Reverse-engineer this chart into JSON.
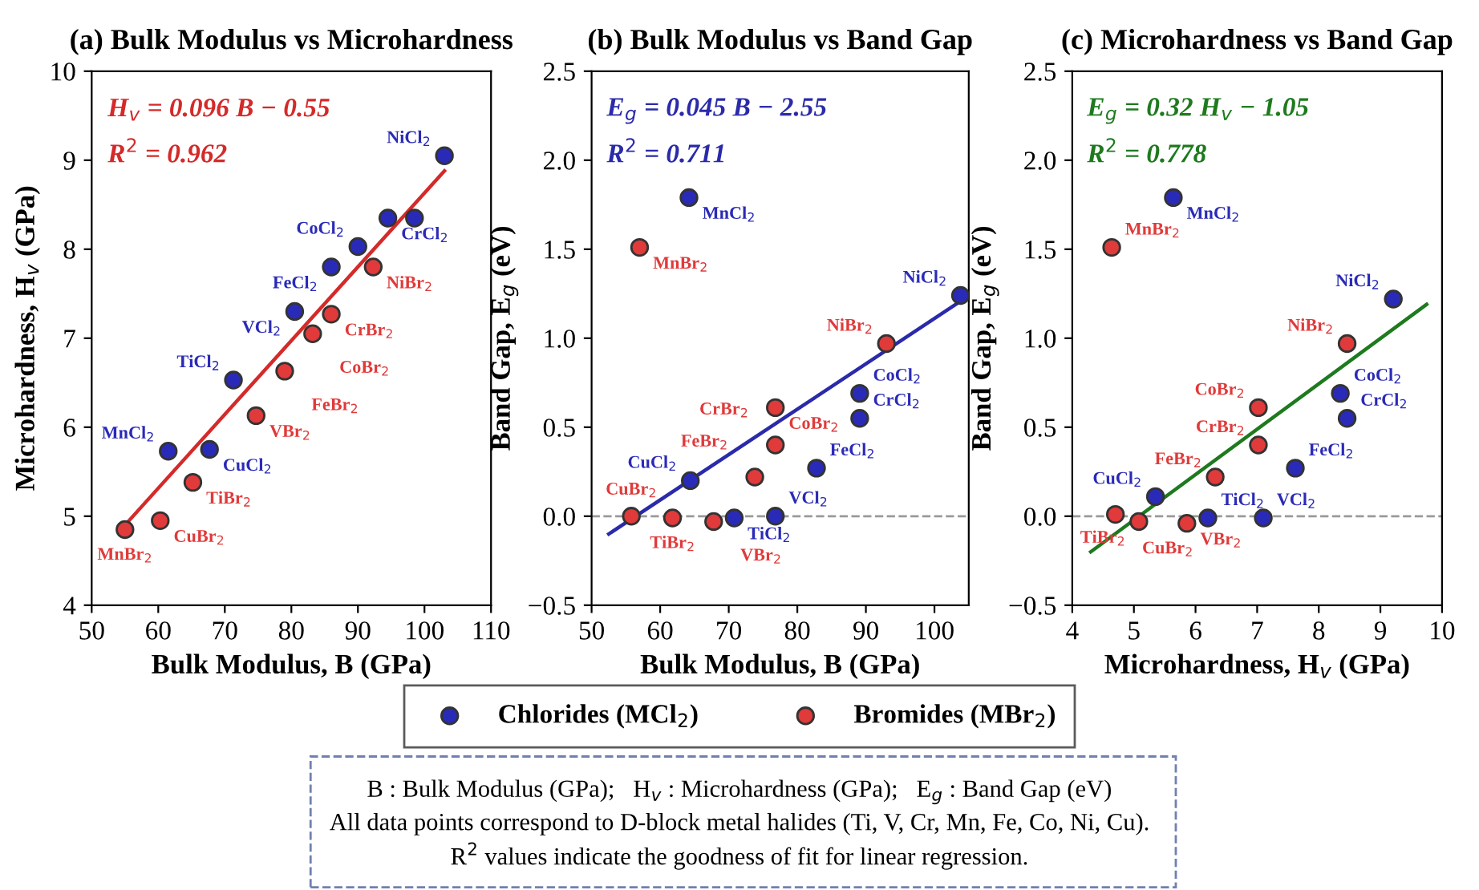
{
  "chart_data": [
    {
      "type": "scatter",
      "title": "(a) Bulk Modulus vs Microhardness",
      "xlabel": "Bulk Modulus, B (GPa)",
      "ylabel": "Microhardness, H$_{v}$ (GPa)",
      "xlim": [
        50,
        110
      ],
      "xticks": [
        50,
        60,
        70,
        80,
        90,
        100,
        110
      ],
      "ylim": [
        4,
        10
      ],
      "yticks": [
        4,
        5,
        6,
        7,
        8,
        9,
        10
      ],
      "grid": false,
      "marker": "circle",
      "series": [
        {
          "color": "#2a2ab8",
          "x": [
            103,
            94.5,
            98.5,
            90,
            86,
            80.5,
            71.3,
            61.5,
            67.7
          ],
          "values": [
            9.05,
            8.35,
            8.35,
            8.03,
            7.8,
            7.3,
            6.53,
            5.73,
            5.75
          ]
        },
        {
          "color": "#e03a3a",
          "x": [
            92.3,
            86,
            83.2,
            79,
            74.7,
            65.2,
            60.3,
            55
          ],
          "values": [
            7.8,
            7.27,
            7.05,
            6.63,
            6.13,
            5.38,
            4.95,
            4.85
          ]
        },
        {
          "type": "line",
          "marker": "none",
          "color": "#d42a2a",
          "x": [
            55,
            103
          ],
          "values": [
            4.9,
            8.88
          ]
        }
      ],
      "annotations": [
        "H$_{v}$ = 0.096 B − 0.55",
        "R$^{2}$ = 0.962",
        {
          "text": "NiCl$_{2}$",
          "x": 103,
          "y": 9.05
        },
        {
          "text": "CrCl$_{2}$",
          "x": 94.5,
          "y": 8.35
        },
        {
          "text": "CoCl$_{2}$",
          "x": 90,
          "y": 8.03
        },
        {
          "text": "FeCl$_{2}$",
          "x": 86,
          "y": 7.8
        },
        {
          "text": "VCl$_{2}$",
          "x": 80.5,
          "y": 7.3
        },
        {
          "text": "TiCl$_{2}$",
          "x": 71.3,
          "y": 6.53
        },
        {
          "text": "MnCl$_{2}$",
          "x": 61.5,
          "y": 5.73
        },
        {
          "text": "CuCl$_{2}$",
          "x": 67.7,
          "y": 5.75
        },
        {
          "text": "NiBr$_{2}$",
          "x": 92.3,
          "y": 7.8
        },
        {
          "text": "CrBr$_{2}$",
          "x": 86,
          "y": 7.27
        },
        {
          "text": "CoBr$_{2}$",
          "x": 83.2,
          "y": 7.05
        },
        {
          "text": "FeBr$_{2}$",
          "x": 79,
          "y": 6.63
        },
        {
          "text": "VBr$_{2}$",
          "x": 74.7,
          "y": 6.13
        },
        {
          "text": "TiBr$_{2}$",
          "x": 65.2,
          "y": 5.38
        },
        {
          "text": "CuBr$_{2}$",
          "x": 60.3,
          "y": 4.95
        },
        {
          "text": "MnBr$_{2}$",
          "x": 55,
          "y": 4.85
        }
      ]
    },
    {
      "type": "scatter",
      "title": "(b) Bulk Modulus vs Band Gap",
      "xlabel": "Bulk Modulus, B (GPa)",
      "ylabel": "Band Gap, E$_{g}$ (eV)",
      "xlim": [
        50,
        105
      ],
      "xticks": [
        50,
        60,
        70,
        80,
        90,
        100
      ],
      "ylim": [
        -0.5,
        2.5
      ],
      "yticks": [
        {
          "value": -0.5,
          "label": "−0.5"
        },
        {
          "value": 0,
          "label": "0.0"
        },
        {
          "value": 0.5,
          "label": "0.5"
        },
        {
          "value": 1,
          "label": "1.0"
        },
        {
          "value": 1.5,
          "label": "1.5"
        },
        {
          "value": 2,
          "label": "2.0"
        },
        {
          "value": 2.5,
          "label": "2.5"
        }
      ],
      "grid": false,
      "marker": "circle",
      "legend": "bottom",
      "ref_lines": [
        {
          "axis": "y",
          "value": 0,
          "color": "#999999",
          "line_style": "dashed"
        }
      ],
      "series": [
        {
          "name": "Chlorides (MCl$_{2}$)",
          "color": "#2a2ab8",
          "x": [
            64.2,
            103.8,
            89.1,
            89.1,
            82.8,
            64.4,
            70.8,
            76.8
          ],
          "values": [
            1.79,
            1.24,
            0.69,
            0.55,
            0.27,
            0.2,
            -0.01,
            0
          ]
        },
        {
          "name": "Bromides (MBr$_{2}$)",
          "color": "#e03a3a",
          "x": [
            57,
            93,
            76.8,
            76.8,
            73.8,
            55.8,
            61.8,
            67.8
          ],
          "values": [
            1.51,
            0.97,
            0.61,
            0.4,
            0.22,
            0,
            -0.01,
            -0.03
          ]
        },
        {
          "type": "line",
          "marker": "none",
          "color": "#2a2aaa",
          "x": [
            52.5,
            103.5
          ],
          "values": [
            -0.1,
            1.2
          ]
        }
      ],
      "annotations": [
        "E$_{g}$ = 0.045 B − 2.55",
        "R$^{2}$ = 0.711",
        {
          "text": "MnCl$_{2}$",
          "x": 64.2,
          "y": 1.79
        },
        {
          "text": "NiCl$_{2}$",
          "x": 103.8,
          "y": 1.24
        },
        {
          "text": "CoCl$_{2}$",
          "x": 89.1,
          "y": 0.69
        },
        {
          "text": "CrCl$_{2}$",
          "x": 89.1,
          "y": 0.55
        },
        {
          "text": "FeCl$_{2}$",
          "x": 82.8,
          "y": 0.27
        },
        {
          "text": "CuCl$_{2}$",
          "x": 64.4,
          "y": 0.2
        },
        {
          "text": "TiCl$_{2}$",
          "x": 70.8,
          "y": -0.01
        },
        {
          "text": "VCl$_{2}$",
          "x": 76.8,
          "y": 0
        },
        {
          "text": "MnBr$_{2}$",
          "x": 57,
          "y": 1.51
        },
        {
          "text": "NiBr$_{2}$",
          "x": 93,
          "y": 0.97
        },
        {
          "text": "CoBr$_{2}$",
          "x": 76.8,
          "y": 0.61
        },
        {
          "text": "CrBr$_{2}$",
          "x": 76.8,
          "y": 0.4
        },
        {
          "text": "FeBr$_{2}$",
          "x": 73.8,
          "y": 0.22
        },
        {
          "text": "CuBr$_{2}$",
          "x": 55.8,
          "y": 0
        },
        {
          "text": "TiBr$_{2}$",
          "x": 61.8,
          "y": -0.01
        },
        {
          "text": "VBr$_{2}$",
          "x": 67.8,
          "y": -0.03
        }
      ]
    },
    {
      "type": "scatter",
      "title": "(c) Microhardness vs Band Gap",
      "xlabel": "Microhardness, H$_{v}$ (GPa)",
      "ylabel": "Band Gap, E$_{g}$ (eV)",
      "xlim": [
        4,
        10
      ],
      "xticks": [
        4,
        5,
        6,
        7,
        8,
        9,
        10
      ],
      "ylim": [
        -0.5,
        2.5
      ],
      "yticks": [
        {
          "value": -0.5,
          "label": "−0.5"
        },
        {
          "value": 0,
          "label": "0.0"
        },
        {
          "value": 0.5,
          "label": "0.5"
        },
        {
          "value": 1,
          "label": "1.0"
        },
        {
          "value": 1.5,
          "label": "1.5"
        },
        {
          "value": 2,
          "label": "2.0"
        },
        {
          "value": 2.5,
          "label": "2.5"
        }
      ],
      "grid": false,
      "marker": "circle",
      "ref_lines": [
        {
          "axis": "y",
          "value": 0,
          "color": "#999999",
          "line_style": "dashed"
        }
      ],
      "series": [
        {
          "color": "#2a2ab8",
          "x": [
            5.64,
            9.21,
            8.35,
            8.46,
            7.62,
            5.35,
            6.2,
            7.1
          ],
          "values": [
            1.79,
            1.22,
            0.69,
            0.55,
            0.27,
            0.11,
            -0.01,
            -0.01
          ]
        },
        {
          "color": "#e03a3a",
          "x": [
            4.64,
            8.46,
            7.02,
            7.02,
            6.32,
            4.7,
            5.08,
            5.86
          ],
          "values": [
            1.51,
            0.97,
            0.61,
            0.4,
            0.22,
            0.01,
            -0.03,
            -0.04
          ]
        },
        {
          "type": "line",
          "marker": "none",
          "color": "#1e7a1e",
          "x": [
            4.3,
            9.75
          ],
          "values": [
            -0.2,
            1.19
          ]
        }
      ],
      "annotations": [
        "E$_{g}$ = 0.32 H$_{v}$ − 1.05",
        "R$^{2}$ = 0.778",
        {
          "text": "MnCl$_{2}$",
          "x": 5.64,
          "y": 1.79
        },
        {
          "text": "NiCl$_{2}$",
          "x": 9.21,
          "y": 1.22
        },
        {
          "text": "CoCl$_{2}$",
          "x": 8.35,
          "y": 0.69
        },
        {
          "text": "CrCl$_{2}$",
          "x": 8.46,
          "y": 0.55
        },
        {
          "text": "FeCl$_{2}$",
          "x": 7.62,
          "y": 0.27
        },
        {
          "text": "CuCl$_{2}$",
          "x": 5.35,
          "y": 0.11
        },
        {
          "text": "TiCl$_{2}$",
          "x": 6.2,
          "y": -0.01
        },
        {
          "text": "VCl$_{2}$",
          "x": 7.1,
          "y": -0.01
        },
        {
          "text": "MnBr$_{2}$",
          "x": 4.64,
          "y": 1.51
        },
        {
          "text": "NiBr$_{2}$",
          "x": 8.46,
          "y": 0.97
        },
        {
          "text": "CoBr$_{2}$",
          "x": 7.02,
          "y": 0.61
        },
        {
          "text": "CrBr$_{2}$",
          "x": 7.02,
          "y": 0.4
        },
        {
          "text": "FeBr$_{2}$",
          "x": 6.32,
          "y": 0.22
        },
        {
          "text": "CuBr$_{2}$",
          "x": 4.7,
          "y": 0.01
        },
        {
          "text": "TiBr$_{2}$",
          "x": 5.08,
          "y": -0.03
        },
        {
          "text": "VBr$_{2}$",
          "x": 5.86,
          "y": -0.04
        }
      ]
    },
    {
      "type": "other",
      "annotations": [
        "B : Bulk Modulus (GPa);   H$_{v}$ : Microhardness (GPa);   E$_{g}$ : Band Gap (eV)",
        "All data points correspond to D-block metal halides (Ti, V, Cr, Mn, Fe, Co, Ni, Cu).",
        "R$^{2}$ values indicate the goodness of fit for linear regression."
      ]
    }
  ]
}
